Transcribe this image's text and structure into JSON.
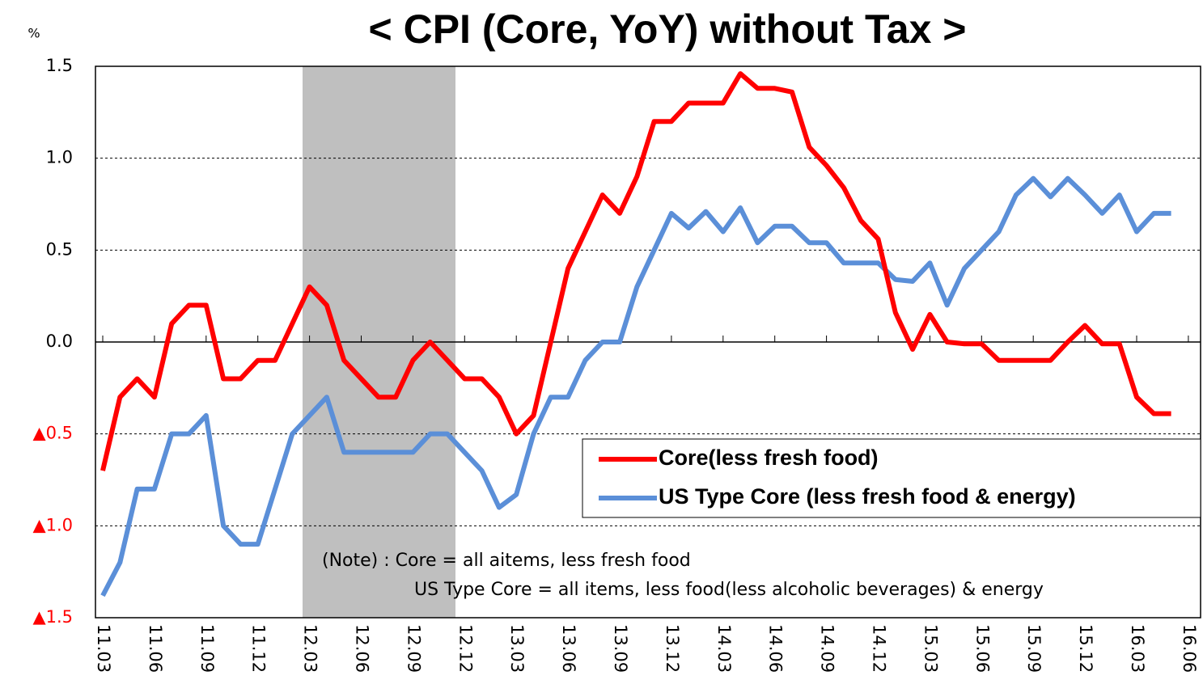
{
  "chart_data": {
    "type": "line",
    "title": "< CPI (Core, YoY) without Tax >",
    "y_unit": "%",
    "categories": [
      "11.03",
      null,
      null,
      "11.06",
      null,
      null,
      "11.09",
      null,
      null,
      "11.12",
      null,
      null,
      "12.03",
      null,
      null,
      "12.06",
      null,
      null,
      "12.09",
      null,
      null,
      "12.12",
      null,
      null,
      "13.03",
      null,
      null,
      "13.06",
      null,
      null,
      "13.09",
      null,
      null,
      "13.12",
      null,
      null,
      "14.03",
      null,
      null,
      "14.06",
      null,
      null,
      "14.09",
      null,
      null,
      "14.12",
      null,
      null,
      "15.03",
      null,
      null,
      "15.06",
      null,
      null,
      "15.09",
      null,
      null,
      "15.12",
      null,
      null,
      "16.03",
      null,
      null,
      "16.06"
    ],
    "series": [
      {
        "name": "Core(less fresh food)",
        "color": "#ff0000",
        "values": [
          -0.7,
          -0.3,
          -0.2,
          -0.3,
          0.1,
          0.2,
          0.2,
          -0.2,
          -0.2,
          -0.1,
          -0.1,
          0.1,
          0.3,
          0.2,
          -0.1,
          -0.2,
          -0.3,
          -0.3,
          -0.1,
          0.0,
          -0.1,
          -0.2,
          -0.2,
          -0.3,
          -0.5,
          -0.4,
          0.0,
          0.4,
          0.6,
          0.8,
          0.7,
          0.9,
          1.2,
          1.2,
          1.3,
          1.3,
          1.3,
          1.46,
          1.38,
          1.38,
          1.36,
          1.06,
          0.96,
          0.84,
          0.66,
          0.56,
          0.16,
          -0.04,
          0.15,
          0.0,
          -0.01,
          -0.01,
          -0.1,
          -0.1,
          -0.1,
          -0.1,
          0.0,
          0.09,
          -0.01,
          -0.01,
          -0.3,
          -0.39,
          -0.39,
          null
        ]
      },
      {
        "name": "US Type Core (less fresh food & energy)",
        "color": "#5b8fd8",
        "values": [
          -1.38,
          -1.2,
          -0.8,
          -0.8,
          -0.5,
          -0.5,
          -0.4,
          -1.0,
          -1.1,
          -1.1,
          -0.8,
          -0.5,
          -0.4,
          -0.3,
          -0.6,
          -0.6,
          -0.6,
          -0.6,
          -0.6,
          -0.5,
          -0.5,
          -0.6,
          -0.7,
          -0.9,
          -0.83,
          -0.5,
          -0.3,
          -0.3,
          -0.1,
          0.0,
          0.0,
          0.3,
          0.5,
          0.7,
          0.62,
          0.71,
          0.6,
          0.73,
          0.54,
          0.63,
          0.63,
          0.54,
          0.54,
          0.43,
          0.43,
          0.43,
          0.34,
          0.33,
          0.43,
          0.2,
          0.4,
          0.5,
          0.6,
          0.8,
          0.89,
          0.79,
          0.89,
          0.8,
          0.7,
          0.8,
          0.6,
          0.7,
          0.7,
          null
        ]
      }
    ],
    "ylim": [
      -1.5,
      1.5
    ],
    "yticks": [
      1.5,
      {
        "value": 1,
        "label": "1.0"
      },
      0.5,
      {
        "value": 0,
        "label": "0.0"
      },
      {
        "value": -0.5,
        "label": "▲0.5"
      },
      {
        "value": -1,
        "label": "▲1.0"
      },
      {
        "value": -1.5,
        "label": "▲1.5"
      }
    ],
    "grid": true,
    "legend": "lower right",
    "notes": [
      "(Note)  : Core = all aitems, less fresh food",
      "US Type Core = all items, less food(less alcoholic beverages) & energy"
    ]
  }
}
